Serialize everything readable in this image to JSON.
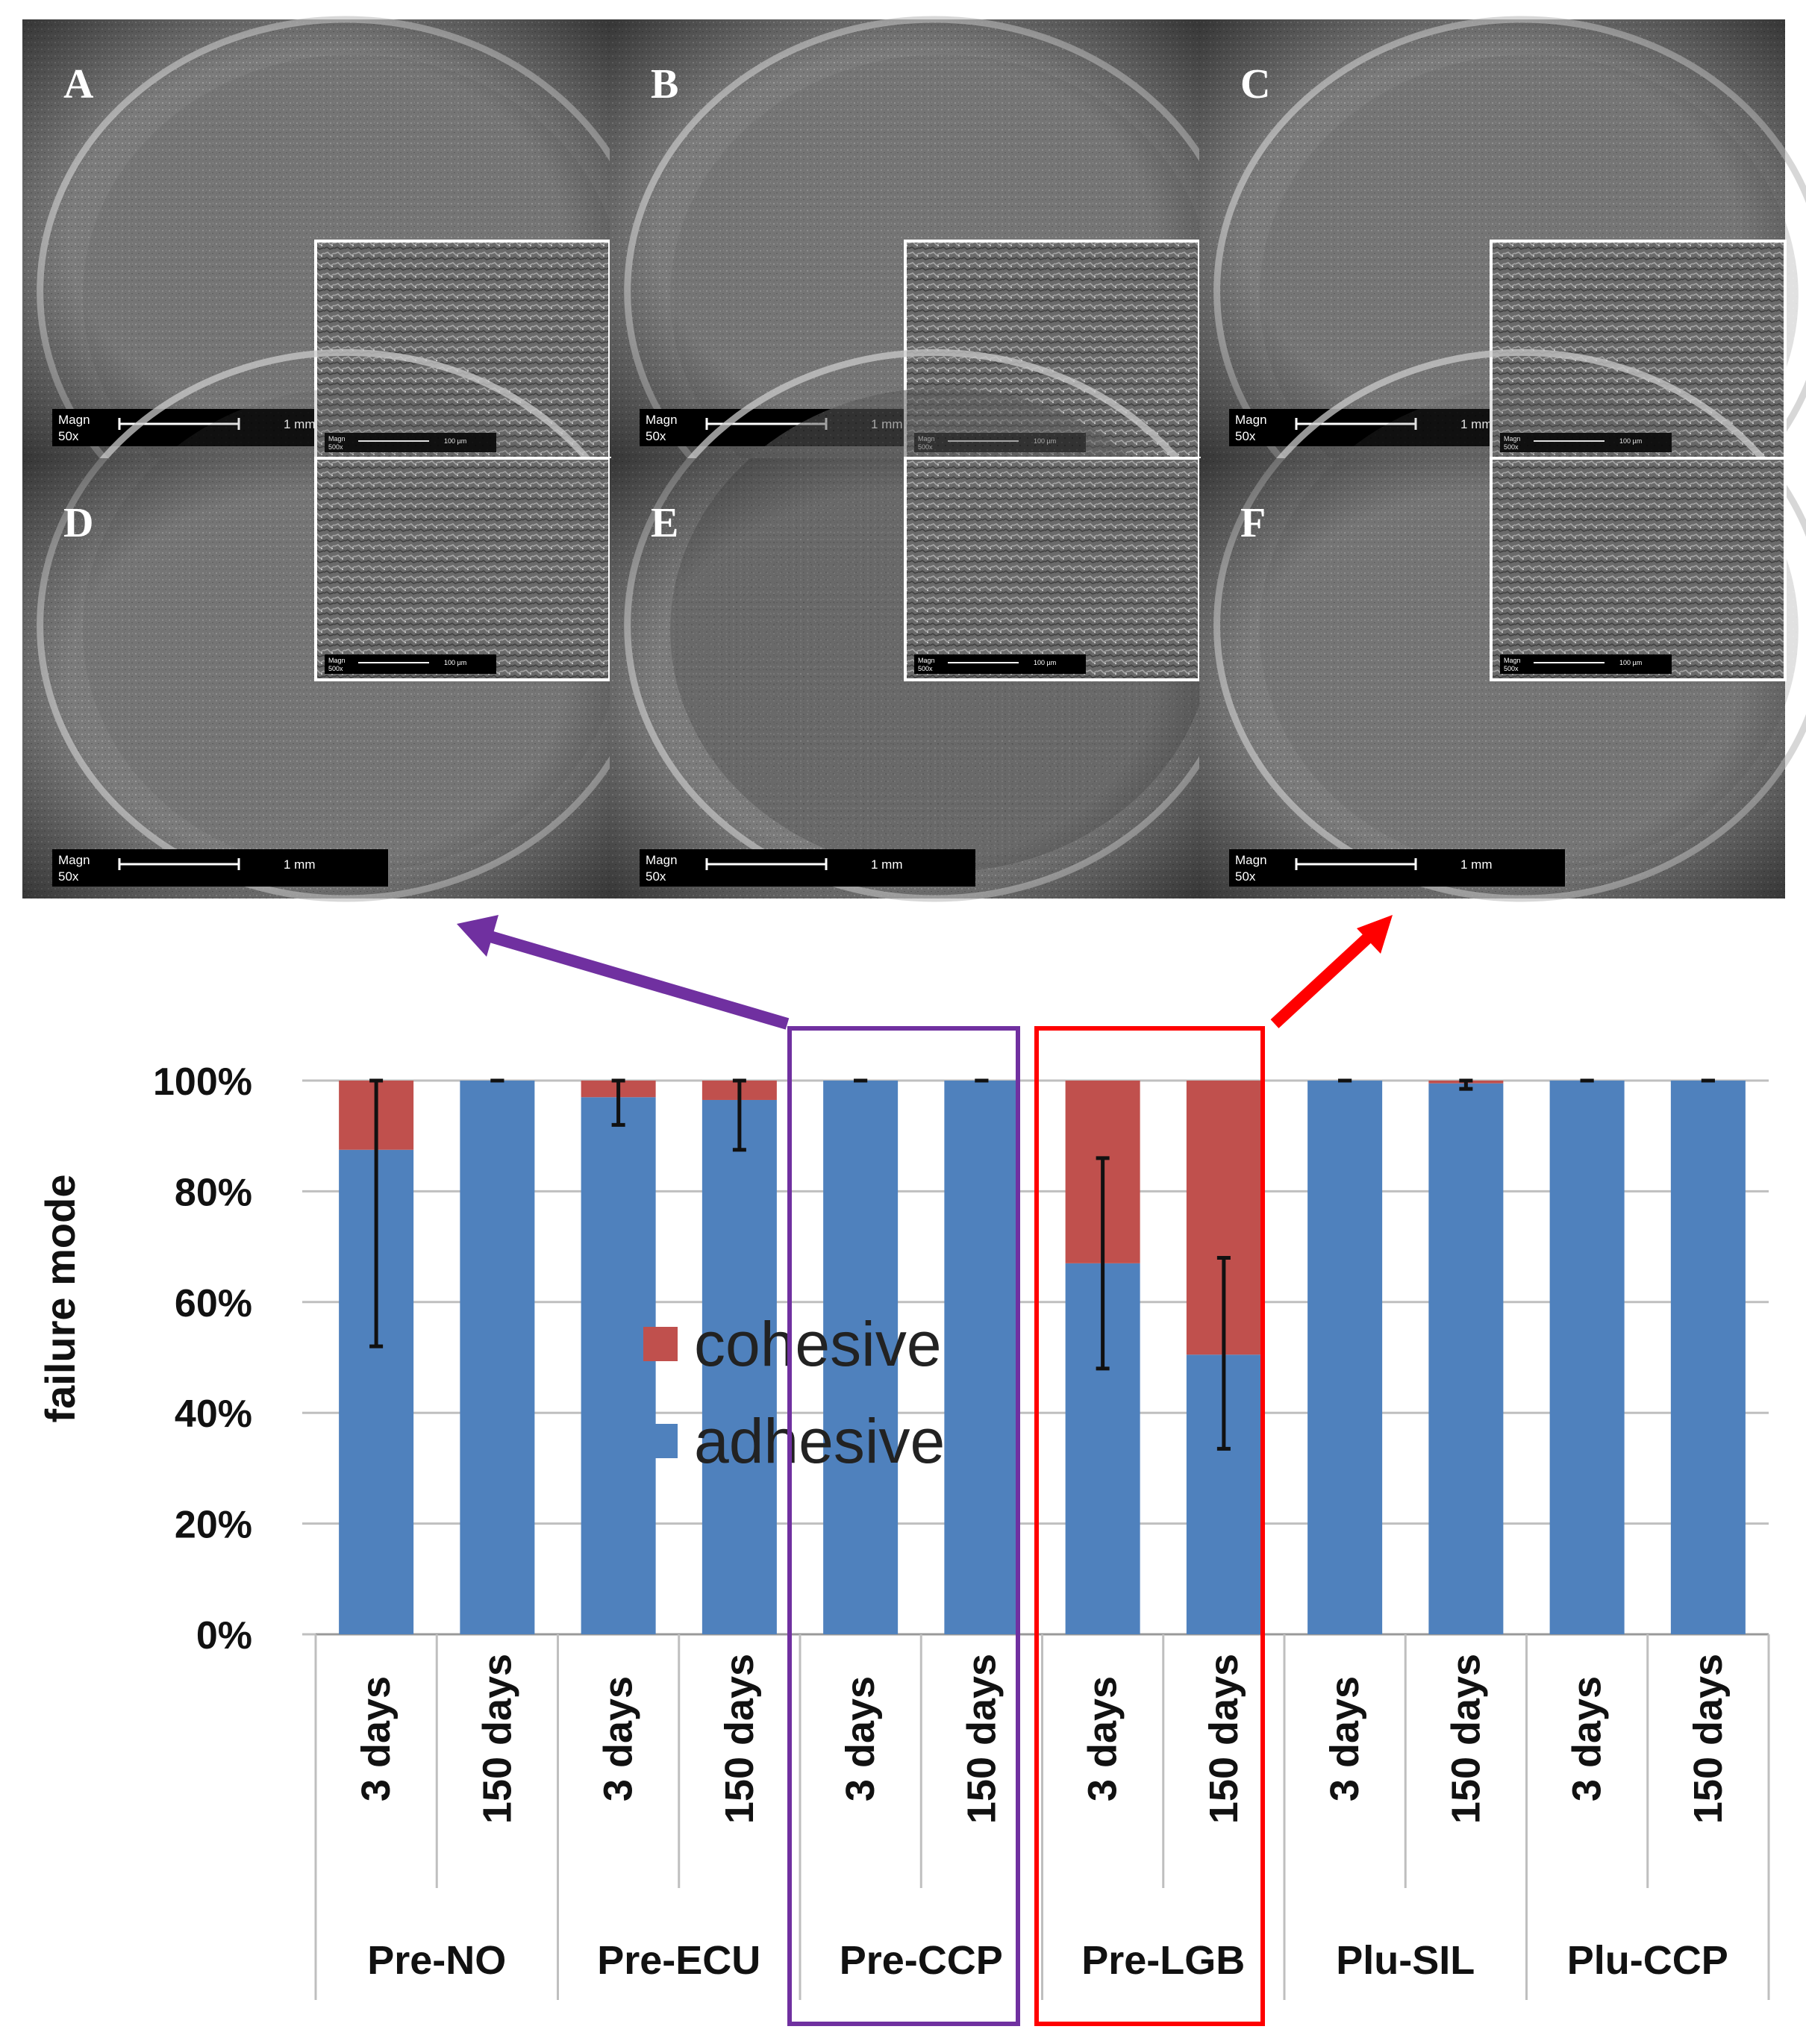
{
  "figure": {
    "panels": [
      {
        "letter": "A",
        "scale_main": {
          "magn": "Magn",
          "mag": "50x",
          "bar": "1 mm"
        },
        "scale_inset": {
          "magn": "Magn",
          "mag": "500x",
          "bar": "100 µm"
        }
      },
      {
        "letter": "B",
        "scale_main": {
          "magn": "Magn",
          "mag": "50x",
          "bar": "1 mm"
        },
        "scale_inset": {
          "magn": "Magn",
          "mag": "500x",
          "bar": "100 µm"
        }
      },
      {
        "letter": "C",
        "scale_main": {
          "magn": "Magn",
          "mag": "50x",
          "bar": "1 mm"
        },
        "scale_inset": {
          "magn": "Magn",
          "mag": "500x",
          "bar": "100 µm"
        }
      },
      {
        "letter": "D",
        "scale_main": {
          "magn": "Magn",
          "mag": "50x",
          "bar": "1 mm"
        },
        "scale_inset": {
          "magn": "Magn",
          "mag": "500x",
          "bar": "100 µm"
        }
      },
      {
        "letter": "E",
        "scale_main": {
          "magn": "Magn",
          "mag": "50x",
          "bar": "1 mm"
        },
        "scale_inset": {
          "magn": "Magn",
          "mag": "500x",
          "bar": "100 µm"
        }
      },
      {
        "letter": "F",
        "scale_main": {
          "magn": "Magn",
          "mag": "50x",
          "bar": "1 mm"
        },
        "scale_inset": {
          "magn": "Magn",
          "mag": "500x",
          "bar": "100 µm"
        }
      }
    ],
    "highlight_colors": {
      "pre_ccp": "#7030A0",
      "pre_lgb": "#FF0000"
    }
  },
  "chart_data": {
    "type": "bar",
    "stacked": true,
    "ylabel": "failure mode",
    "ylim": [
      0,
      100
    ],
    "yticks": [
      "0%",
      "20%",
      "40%",
      "60%",
      "80%",
      "100%"
    ],
    "grid": true,
    "legend_position": "inside-center",
    "groups": [
      "Pre-NO",
      "Pre-ECU",
      "Pre-CCP",
      "Pre-LGB",
      "Plu-SIL",
      "Plu-CCP"
    ],
    "categories": [
      "3 days",
      "150 days",
      "3 days",
      "150 days",
      "3 days",
      "150 days",
      "3 days",
      "150 days",
      "3 days",
      "150 days",
      "3 days",
      "150 days"
    ],
    "series": [
      {
        "name": "cohesive",
        "color": "#C0504D",
        "values": [
          12.5,
          0,
          3,
          3.5,
          0,
          0,
          33,
          49.5,
          0,
          0.5,
          0,
          0
        ]
      },
      {
        "name": "adhesive",
        "color": "#4F81BD",
        "values": [
          87.5,
          100,
          97,
          96.5,
          100,
          100,
          67,
          50.5,
          100,
          99.5,
          100,
          100
        ]
      }
    ],
    "error_bars": [
      {
        "low": 52,
        "high": 100
      },
      {
        "low": 100,
        "high": 100
      },
      {
        "low": 92,
        "high": 100
      },
      {
        "low": 87.5,
        "high": 100
      },
      {
        "low": 100,
        "high": 100
      },
      {
        "low": 100,
        "high": 100
      },
      {
        "low": 48,
        "high": 86
      },
      {
        "low": 33.5,
        "high": 68
      },
      {
        "low": 100,
        "high": 100
      },
      {
        "low": 98.5,
        "high": 100
      },
      {
        "low": 100,
        "high": 100
      },
      {
        "low": 100,
        "high": 100
      }
    ]
  }
}
